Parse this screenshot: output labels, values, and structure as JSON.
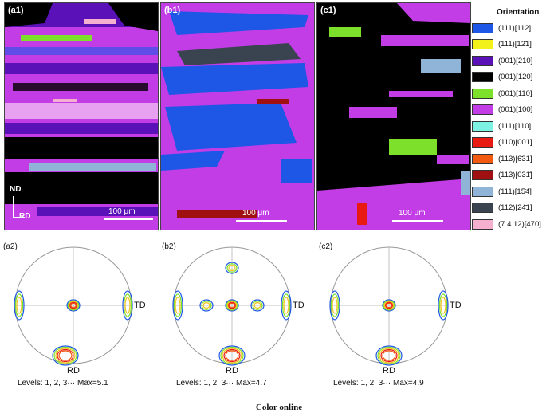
{
  "maps": [
    {
      "label": "(a1)",
      "scalebar": "100 μm",
      "nd_label": "ND",
      "rd_label": "RD"
    },
    {
      "label": "(b1)",
      "scalebar": "100 μm"
    },
    {
      "label": "(c1)",
      "scalebar": "100 μm"
    }
  ],
  "legend": {
    "title": "Orientation",
    "items": [
      {
        "label": "(111)[112̄]",
        "color": "#1e56e6"
      },
      {
        "label": "(111)[12̄1]",
        "color": "#f2f21a"
      },
      {
        "label": "(001)[210]",
        "color": "#5a12b8"
      },
      {
        "label": "(001)[120]",
        "color": "#000000"
      },
      {
        "label": "(001)[110]",
        "color": "#7de02a"
      },
      {
        "label": "(001)[100]",
        "color": "#c23de6"
      },
      {
        "label": "(111)[11̄0]",
        "color": "#7ef2e2"
      },
      {
        "label": "(110)[001]",
        "color": "#e81a12"
      },
      {
        "label": "(113)[6̄31]",
        "color": "#f25a12"
      },
      {
        "label": "(113)[031̄]",
        "color": "#a01010"
      },
      {
        "label": "(111)[15̄4]",
        "color": "#8fb4d8"
      },
      {
        "label": "(112)[24̄1]",
        "color": "#3a4450"
      },
      {
        "label": "(7̄ 4 12)[4̄70]",
        "color": "#f5b0d0"
      }
    ]
  },
  "pole_figures": [
    {
      "label": "(a2)",
      "td": "TD",
      "rd": "RD",
      "levels": "Levels: 1, 2, 3··· Max=5.1"
    },
    {
      "label": "(b2)",
      "td": "TD",
      "rd": "RD",
      "levels": "Levels: 1, 2, 3··· Max=4.7"
    },
    {
      "label": "(c2)",
      "td": "TD",
      "rd": "RD",
      "levels": "Levels: 1, 2, 3··· Max=4.9"
    }
  ],
  "caption": "Color online"
}
